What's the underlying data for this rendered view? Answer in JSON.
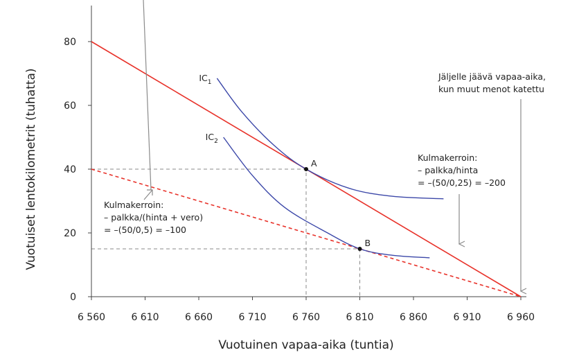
{
  "chart_data": {
    "type": "line",
    "xlabel": "Vuotuinen vapaa-aika (tuntia)",
    "ylabel": "Vuotuiset lentokilometrit (tuhatta)",
    "xlim": [
      6560,
      6960
    ],
    "ylim": [
      0,
      80
    ],
    "xticks": [
      6560,
      6610,
      6660,
      6710,
      6760,
      6810,
      6860,
      6910,
      6960
    ],
    "xtick_labels": [
      "6 560",
      "6 610",
      "6 660",
      "6 710",
      "6 760",
      "6 810",
      "6 860",
      "6 910",
      "6 960"
    ],
    "yticks": [
      0,
      20,
      40,
      60,
      80
    ],
    "ytick_labels": [
      "0",
      "20",
      "40",
      "60",
      "80"
    ],
    "grid": false,
    "colors": {
      "budget": "#e8322a",
      "indifference": "#3b47a8",
      "guide": "#888888",
      "arrow": "#8a8a8a"
    },
    "budget_lines": [
      {
        "style": "solid",
        "x": [
          6560,
          6960
        ],
        "y": [
          80,
          0
        ]
      },
      {
        "style": "dashed",
        "x": [
          6560,
          6960
        ],
        "y": [
          40,
          0
        ]
      }
    ],
    "indifference_curves": [
      {
        "label": "IC",
        "sub": "1",
        "x": [
          6677,
          6700,
          6730,
          6760,
          6800,
          6840,
          6888
        ],
        "y": [
          68.5,
          58,
          47.5,
          40,
          34,
          31.5,
          30.7
        ]
      },
      {
        "label": "IC",
        "sub": "2",
        "x": [
          6683,
          6710,
          6740,
          6780,
          6810,
          6840,
          6875
        ],
        "y": [
          50,
          38,
          28,
          20,
          15,
          13,
          12.2
        ]
      }
    ],
    "points": [
      {
        "label": "A",
        "x": 6760,
        "y": 40
      },
      {
        "label": "B",
        "x": 6810,
        "y": 15
      }
    ],
    "annotations": {
      "endpoint": [
        "Jäljelle jäävä vapaa-aika,",
        "kun muut menot katettu"
      ],
      "slope1": [
        "Kulmakerroin:",
        "– palkka/hinta",
        "= –(50/0,25) = –200"
      ],
      "slope2": [
        "Kulmakerroin:",
        "– palkka/(hinta + vero)",
        "= –(50/0,5) = –100"
      ]
    }
  }
}
